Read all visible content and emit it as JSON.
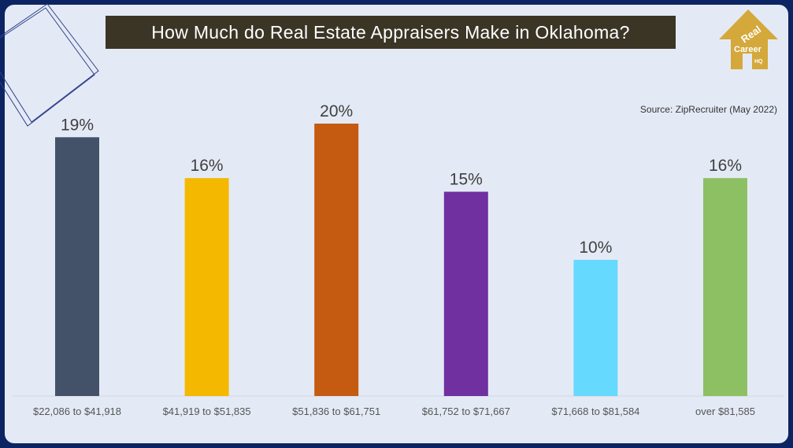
{
  "title": "How Much do Real Estate Appraisers Make in Oklahoma?",
  "source": "Source: ZipRecruiter (May 2022)",
  "logo": {
    "text": "Real Estate Career HQ",
    "color": "#d4a83a"
  },
  "chart_data": {
    "type": "bar",
    "title": "How Much do Real Estate Appraisers Make in Oklahoma?",
    "categories": [
      "$22,086 to $41,918",
      "$41,919 to $51,835",
      "$51,836 to $61,751",
      "$61,752 to $71,667",
      "$71,668 to $81,584",
      "over $81,585"
    ],
    "values": [
      19,
      16,
      20,
      15,
      10,
      16
    ],
    "labels": [
      "19%",
      "16%",
      "20%",
      "15%",
      "10%",
      "16%"
    ],
    "colors": [
      "#435268",
      "#f5b800",
      "#c55a11",
      "#7030a0",
      "#66d9ff",
      "#8dc063"
    ],
    "ylim": [
      0,
      20
    ],
    "grid": false,
    "unit": "%"
  }
}
